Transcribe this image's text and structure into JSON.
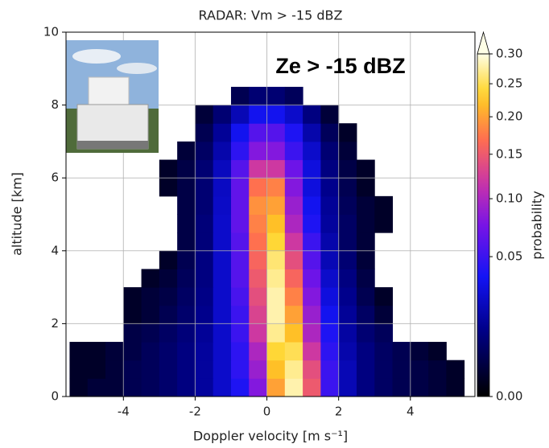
{
  "chart_data": {
    "type": "heatmap",
    "title": "RADAR: Vm > -15 dBZ",
    "annotation": "Ze > -15 dBZ",
    "xlabel": "Doppler velocity [m s⁻¹]",
    "ylabel": "altitude [km]",
    "xlim": [
      -5.6,
      5.8
    ],
    "ylim": [
      0,
      10
    ],
    "xticks": [
      -4,
      -2,
      0,
      2,
      4
    ],
    "yticks": [
      0,
      2,
      4,
      6,
      8,
      10
    ],
    "grid": true,
    "xbins": [
      -5.5,
      -5,
      -4.5,
      -4,
      -3.5,
      -3,
      -2.5,
      -2,
      -1.5,
      -1,
      -0.5,
      0,
      0.5,
      1,
      1.5,
      2,
      2.5,
      3,
      3.5,
      4,
      4.5,
      5,
      5.5
    ],
    "ybins": [
      0,
      0.5,
      1,
      1.5,
      2,
      2.5,
      3,
      3.5,
      4,
      4.5,
      5,
      5.5,
      6,
      6.5,
      7,
      7.5,
      8,
      8.5
    ],
    "values": [
      [
        0.001,
        0.002,
        0.002,
        0.004,
        0.005,
        0.007,
        0.01,
        0.015,
        0.025,
        0.04,
        0.08,
        0.2,
        0.28,
        0.15,
        0.05,
        0.02,
        0.01,
        0.006,
        0.004,
        0.003,
        0.002,
        0.001
      ],
      [
        0.001,
        0.001,
        0.002,
        0.004,
        0.005,
        0.007,
        0.01,
        0.015,
        0.025,
        0.045,
        0.09,
        0.22,
        0.27,
        0.14,
        0.05,
        0.02,
        0.01,
        0.006,
        0.004,
        0.003,
        0.002,
        0.001
      ],
      [
        0.001,
        0.001,
        0.002,
        0.003,
        0.005,
        0.007,
        0.01,
        0.015,
        0.025,
        0.045,
        0.1,
        0.24,
        0.25,
        0.12,
        0.045,
        0.018,
        0.01,
        0.006,
        0.004,
        0.002,
        0.001,
        null
      ],
      [
        null,
        null,
        null,
        0.003,
        0.004,
        0.006,
        0.009,
        0.014,
        0.025,
        0.05,
        0.12,
        0.27,
        0.22,
        0.1,
        0.04,
        0.016,
        0.008,
        0.005,
        null,
        null,
        null,
        null
      ],
      [
        null,
        null,
        null,
        0.001,
        0.002,
        0.004,
        0.007,
        0.012,
        0.025,
        0.05,
        0.13,
        0.28,
        0.2,
        0.09,
        0.035,
        0.014,
        0.006,
        0.002,
        null,
        null,
        null,
        null
      ],
      [
        null,
        null,
        null,
        0.001,
        0.002,
        0.003,
        0.006,
        0.011,
        0.025,
        0.055,
        0.14,
        0.28,
        0.18,
        0.08,
        0.03,
        0.012,
        0.004,
        0.001,
        null,
        null,
        null,
        null
      ],
      [
        null,
        null,
        null,
        null,
        0.001,
        0.002,
        0.005,
        0.01,
        0.025,
        0.06,
        0.15,
        0.27,
        0.16,
        0.07,
        0.025,
        0.01,
        0.003,
        null,
        null,
        null,
        null,
        null
      ],
      [
        null,
        null,
        null,
        null,
        null,
        0.001,
        0.004,
        0.01,
        0.025,
        0.06,
        0.16,
        0.26,
        0.14,
        0.06,
        0.02,
        0.008,
        0.002,
        null,
        null,
        null,
        null,
        null
      ],
      [
        null,
        null,
        null,
        null,
        null,
        null,
        0.003,
        0.009,
        0.025,
        0.06,
        0.17,
        0.24,
        0.12,
        0.05,
        0.018,
        0.006,
        0.002,
        null,
        null,
        null,
        null,
        null
      ],
      [
        null,
        null,
        null,
        null,
        null,
        null,
        0.003,
        0.009,
        0.025,
        0.065,
        0.18,
        0.22,
        0.1,
        0.04,
        0.015,
        0.006,
        0.002,
        0.001,
        null,
        null,
        null,
        null
      ],
      [
        null,
        null,
        null,
        null,
        null,
        null,
        0.003,
        0.008,
        0.024,
        0.065,
        0.19,
        0.2,
        0.09,
        0.035,
        0.014,
        0.005,
        0.002,
        0.001,
        null,
        null,
        null,
        null
      ],
      [
        null,
        null,
        null,
        null,
        null,
        0.001,
        0.003,
        0.008,
        0.023,
        0.065,
        0.17,
        0.18,
        0.08,
        0.03,
        0.012,
        0.004,
        0.001,
        null,
        null,
        null,
        null,
        null
      ],
      [
        null,
        null,
        null,
        null,
        null,
        0.001,
        0.003,
        0.008,
        0.022,
        0.06,
        0.12,
        0.12,
        0.07,
        0.03,
        0.01,
        0.003,
        0.001,
        null,
        null,
        null,
        null,
        null
      ],
      [
        null,
        null,
        null,
        null,
        null,
        null,
        0.002,
        0.006,
        0.018,
        0.045,
        0.08,
        0.08,
        0.05,
        0.025,
        0.008,
        0.002,
        null,
        null,
        null,
        null,
        null,
        null
      ],
      [
        null,
        null,
        null,
        null,
        null,
        null,
        null,
        0.004,
        0.014,
        0.035,
        0.06,
        0.06,
        0.04,
        0.018,
        0.005,
        0.001,
        null,
        null,
        null,
        null,
        null,
        null
      ],
      [
        null,
        null,
        null,
        null,
        null,
        null,
        null,
        0.002,
        0.008,
        0.02,
        0.035,
        0.035,
        0.025,
        0.01,
        0.002,
        null,
        null,
        null,
        null,
        null,
        null,
        null
      ],
      [
        null,
        null,
        null,
        null,
        null,
        null,
        null,
        null,
        null,
        0.004,
        0.008,
        0.008,
        0.005,
        null,
        null,
        null,
        null,
        null,
        null,
        null,
        null,
        null
      ]
    ],
    "colorbar": {
      "label": "probability",
      "lim": [
        0,
        0.3
      ],
      "gamma": 0.5,
      "ticks": [
        {
          "value": 0,
          "label": "0.00"
        },
        {
          "value": 0.05,
          "label": "0.05"
        },
        {
          "value": 0.1,
          "label": "0.10"
        },
        {
          "value": 0.15,
          "label": "0.15"
        },
        {
          "value": 0.2,
          "label": "0.20"
        },
        {
          "value": 0.25,
          "label": "0.25"
        },
        {
          "value": 0.3,
          "label": "0.30"
        }
      ]
    }
  }
}
